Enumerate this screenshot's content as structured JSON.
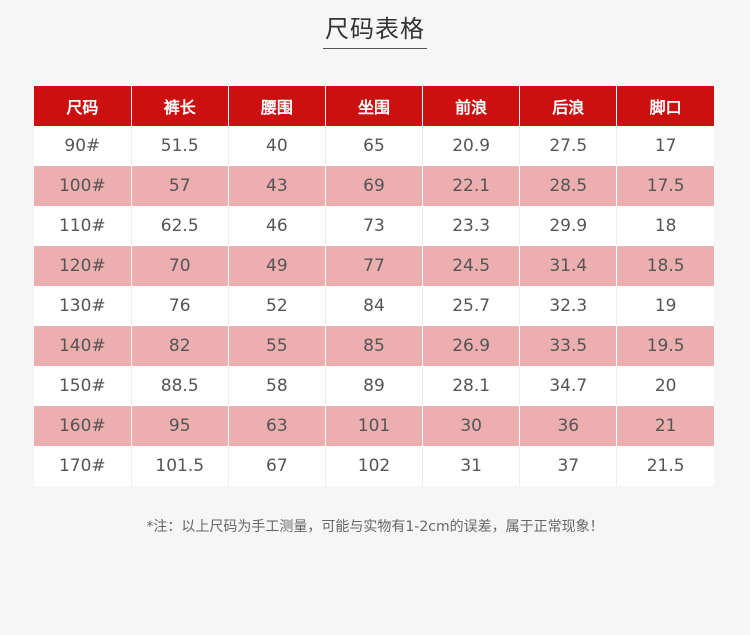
{
  "title": "尺码表格",
  "table": {
    "headers": [
      "尺码",
      "裤长",
      "腰围",
      "坐围",
      "前浪",
      "后浪",
      "脚口"
    ],
    "rows": [
      [
        "90#",
        "51.5",
        "40",
        "65",
        "20.9",
        "27.5",
        "17"
      ],
      [
        "100#",
        "57",
        "43",
        "69",
        "22.1",
        "28.5",
        "17.5"
      ],
      [
        "110#",
        "62.5",
        "46",
        "73",
        "23.3",
        "29.9",
        "18"
      ],
      [
        "120#",
        "70",
        "49",
        "77",
        "24.5",
        "31.4",
        "18.5"
      ],
      [
        "130#",
        "76",
        "52",
        "84",
        "25.7",
        "32.3",
        "19"
      ],
      [
        "140#",
        "82",
        "55",
        "85",
        "26.9",
        "33.5",
        "19.5"
      ],
      [
        "150#",
        "88.5",
        "58",
        "89",
        "28.1",
        "34.7",
        "20"
      ],
      [
        "160#",
        "95",
        "63",
        "101",
        "30",
        "36",
        "21"
      ],
      [
        "170#",
        "101.5",
        "67",
        "102",
        "31",
        "37",
        "21.5"
      ]
    ]
  },
  "note": "*注：以上尺码为手工测量，可能与实物有1-2cm的误差，属于正常现象！",
  "colors": {
    "header_bg": "#cc1010",
    "alt_row_bg": "#ecaeae",
    "page_bg": "#f6f6f6"
  }
}
